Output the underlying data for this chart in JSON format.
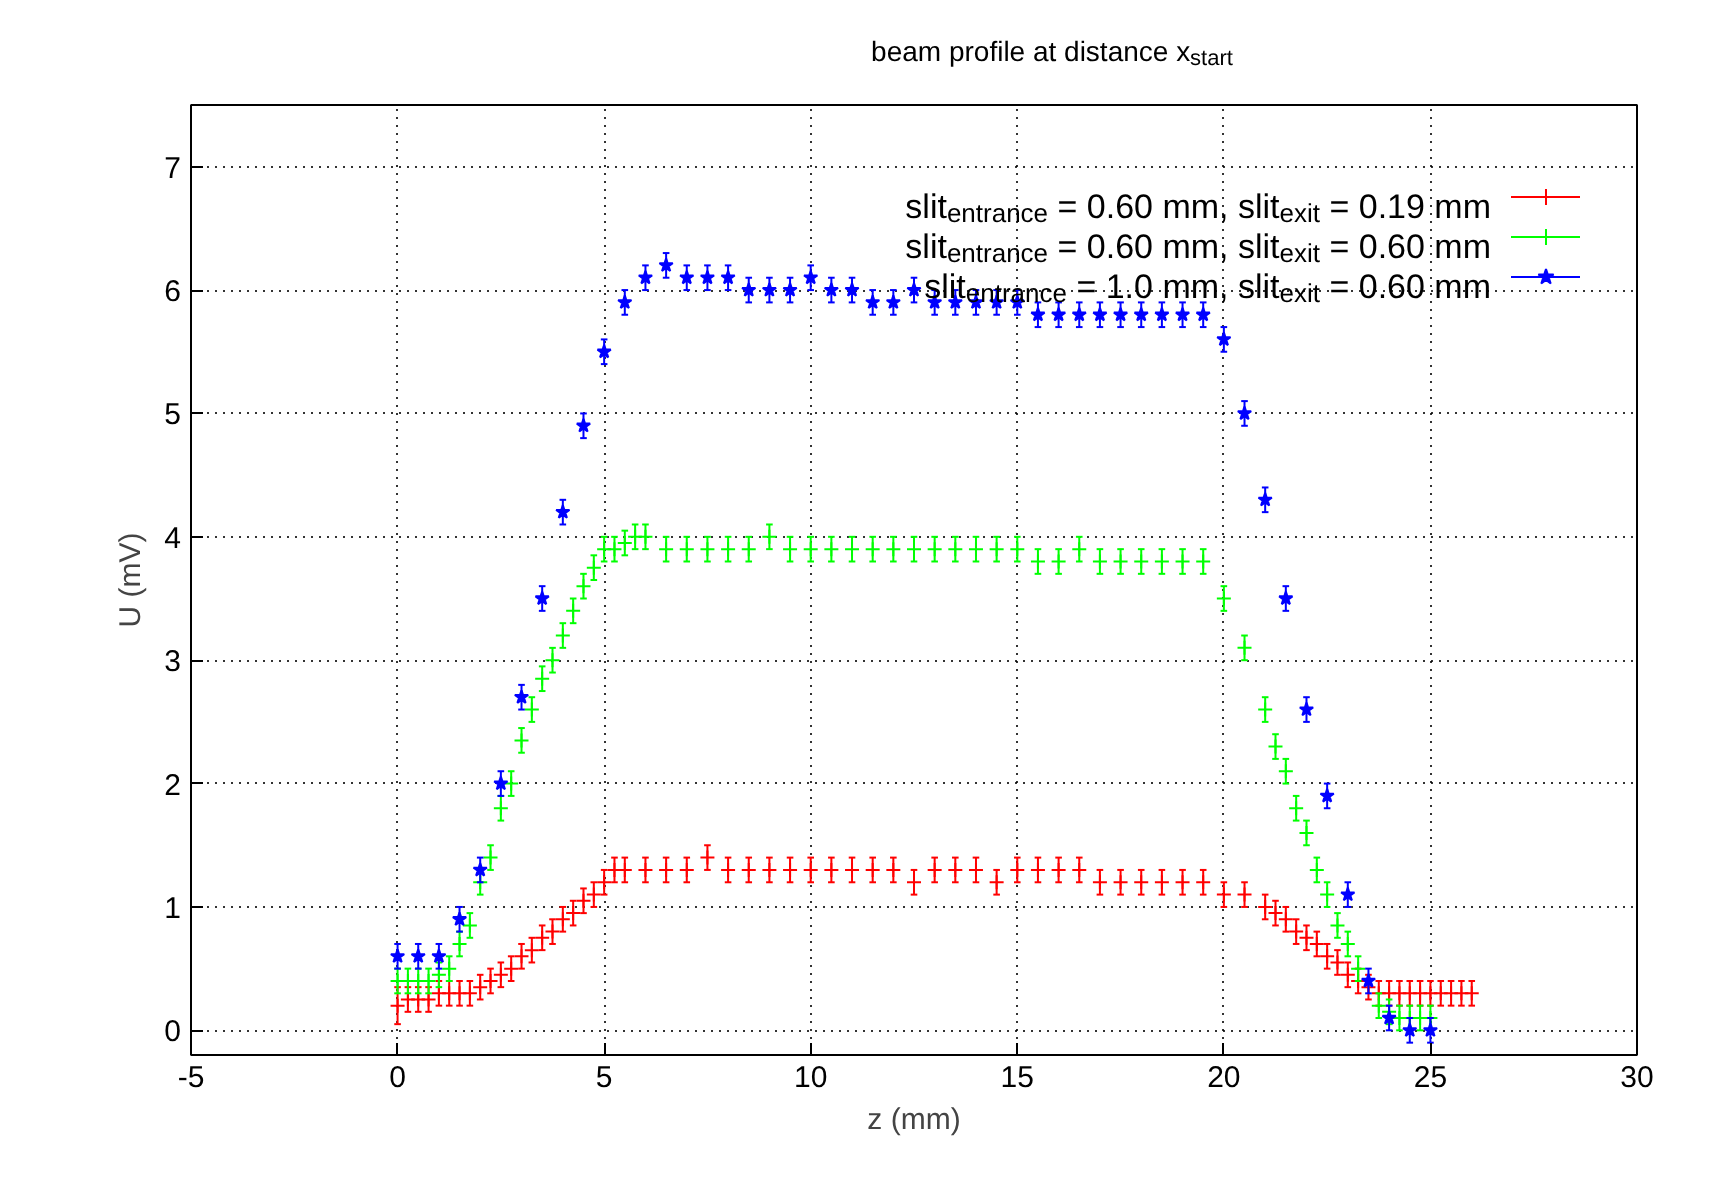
{
  "chart_data": {
    "type": "scatter",
    "title": "beam profile at distance x$_{start}$",
    "xlabel": "z (mm)",
    "ylabel": "U (mV)",
    "xlim": [
      -5,
      30
    ],
    "ylim": [
      -0.2,
      7.5
    ],
    "xticks": [
      -5,
      0,
      5,
      10,
      15,
      20,
      25,
      30
    ],
    "yticks": [
      0,
      1,
      2,
      3,
      4,
      5,
      6,
      7
    ],
    "grid": true,
    "legend": "top right",
    "series": [
      {
        "name": "slit$_{entrance}$ = 0.60 mm, slit$_{exit}$ = 0.19 mm",
        "color": "#ff0000",
        "marker": "cross",
        "x": [
          0,
          0.25,
          0.5,
          0.75,
          1,
          1.25,
          1.5,
          1.75,
          2,
          2.25,
          2.5,
          2.75,
          3,
          3.25,
          3.5,
          3.75,
          4,
          4.25,
          4.5,
          4.75,
          5,
          5.25,
          5.5,
          6,
          6.5,
          7,
          7.5,
          8,
          8.5,
          9,
          9.5,
          10,
          10.5,
          11,
          11.5,
          12,
          12.5,
          13,
          13.5,
          14,
          14.5,
          15,
          15.5,
          16,
          16.5,
          17,
          17.5,
          18,
          18.5,
          19,
          19.5,
          20,
          20.5,
          21,
          21.25,
          21.5,
          21.75,
          22,
          22.25,
          22.5,
          22.75,
          23,
          23.25,
          23.5,
          23.75,
          24,
          24.25,
          24.5,
          24.75,
          25,
          25.25,
          25.5,
          25.75,
          26
        ],
        "values": [
          0.2,
          0.25,
          0.25,
          0.25,
          0.3,
          0.3,
          0.3,
          0.3,
          0.35,
          0.4,
          0.45,
          0.5,
          0.6,
          0.65,
          0.75,
          0.8,
          0.9,
          0.95,
          1.05,
          1.1,
          1.2,
          1.3,
          1.3,
          1.3,
          1.3,
          1.3,
          1.4,
          1.3,
          1.3,
          1.3,
          1.3,
          1.3,
          1.3,
          1.3,
          1.3,
          1.3,
          1.2,
          1.3,
          1.3,
          1.3,
          1.2,
          1.3,
          1.3,
          1.3,
          1.3,
          1.2,
          1.2,
          1.2,
          1.2,
          1.2,
          1.2,
          1.1,
          1.1,
          1.0,
          0.95,
          0.9,
          0.8,
          0.75,
          0.7,
          0.6,
          0.55,
          0.45,
          0.4,
          0.35,
          0.3,
          0.3,
          0.3,
          0.3,
          0.3,
          0.3,
          0.3,
          0.3,
          0.3,
          0.3
        ],
        "errors": [
          0.15,
          0.1,
          0.1,
          0.1,
          0.1,
          0.1,
          0.1,
          0.1,
          0.1,
          0.1,
          0.1,
          0.1,
          0.1,
          0.1,
          0.1,
          0.1,
          0.1,
          0.1,
          0.1,
          0.1,
          0.1,
          0.1,
          0.1,
          0.1,
          0.1,
          0.1,
          0.1,
          0.1,
          0.1,
          0.1,
          0.1,
          0.1,
          0.1,
          0.1,
          0.1,
          0.1,
          0.1,
          0.1,
          0.1,
          0.1,
          0.1,
          0.1,
          0.1,
          0.1,
          0.1,
          0.1,
          0.1,
          0.1,
          0.1,
          0.1,
          0.1,
          0.1,
          0.1,
          0.1,
          0.1,
          0.1,
          0.1,
          0.1,
          0.1,
          0.1,
          0.1,
          0.1,
          0.1,
          0.1,
          0.1,
          0.1,
          0.1,
          0.1,
          0.1,
          0.1,
          0.1,
          0.1,
          0.1,
          0.1
        ]
      },
      {
        "name": "slit$_{entrance}$ = 0.60 mm, slit$_{exit}$ = 0.60 mm",
        "color": "#00ff00",
        "marker": "cross",
        "x": [
          0,
          0.25,
          0.5,
          0.75,
          1,
          1.25,
          1.5,
          1.75,
          2,
          2.25,
          2.5,
          2.75,
          3,
          3.25,
          3.5,
          3.75,
          4,
          4.25,
          4.5,
          4.75,
          5,
          5.25,
          5.5,
          5.75,
          6,
          6.5,
          7,
          7.5,
          8,
          8.5,
          9,
          9.5,
          10,
          10.5,
          11,
          11.5,
          12,
          12.5,
          13,
          13.5,
          14,
          14.5,
          15,
          15.5,
          16,
          16.5,
          17,
          17.5,
          18,
          18.5,
          19,
          19.5,
          20,
          20.5,
          21,
          21.25,
          21.5,
          21.75,
          22,
          22.25,
          22.5,
          22.75,
          23,
          23.25,
          23.75,
          24,
          24.25,
          24.5,
          24.75,
          25
        ],
        "values": [
          0.4,
          0.4,
          0.4,
          0.4,
          0.45,
          0.5,
          0.7,
          0.85,
          1.2,
          1.4,
          1.8,
          2.0,
          2.35,
          2.6,
          2.85,
          3.0,
          3.2,
          3.4,
          3.6,
          3.75,
          3.9,
          3.9,
          3.95,
          4.0,
          4.0,
          3.9,
          3.9,
          3.9,
          3.9,
          3.9,
          4.0,
          3.9,
          3.9,
          3.9,
          3.9,
          3.9,
          3.9,
          3.9,
          3.9,
          3.9,
          3.9,
          3.9,
          3.9,
          3.8,
          3.8,
          3.9,
          3.8,
          3.8,
          3.8,
          3.8,
          3.8,
          3.8,
          3.5,
          3.1,
          2.6,
          2.3,
          2.1,
          1.8,
          1.6,
          1.3,
          1.1,
          0.85,
          0.7,
          0.5,
          0.2,
          0.15,
          0.1,
          0.1,
          0.1,
          0.1
        ],
        "errors": [
          0.1,
          0.1,
          0.1,
          0.1,
          0.1,
          0.1,
          0.1,
          0.1,
          0.1,
          0.1,
          0.1,
          0.1,
          0.1,
          0.1,
          0.1,
          0.1,
          0.1,
          0.1,
          0.1,
          0.1,
          0.1,
          0.1,
          0.1,
          0.1,
          0.1,
          0.1,
          0.1,
          0.1,
          0.1,
          0.1,
          0.1,
          0.1,
          0.1,
          0.1,
          0.1,
          0.1,
          0.1,
          0.1,
          0.1,
          0.1,
          0.1,
          0.1,
          0.1,
          0.1,
          0.1,
          0.1,
          0.1,
          0.1,
          0.1,
          0.1,
          0.1,
          0.1,
          0.1,
          0.1,
          0.1,
          0.1,
          0.1,
          0.1,
          0.1,
          0.1,
          0.1,
          0.1,
          0.1,
          0.1,
          0.1,
          0.1,
          0.1,
          0.1,
          0.1,
          0.1
        ]
      },
      {
        "name": "slit$_{entrance}$ = 1.0 mm, slit$_{exit}$ = 0.60 mm",
        "color": "#0000ff",
        "marker": "star",
        "x": [
          0,
          0.5,
          1,
          1.5,
          2,
          2.5,
          3,
          3.5,
          4,
          4.5,
          5,
          5.5,
          6,
          6.5,
          7,
          7.5,
          8,
          8.5,
          9,
          9.5,
          10,
          10.5,
          11,
          11.5,
          12,
          12.5,
          13,
          13.5,
          14,
          14.5,
          15,
          15.5,
          16,
          16.5,
          17,
          17.5,
          18,
          18.5,
          19,
          19.5,
          20,
          20.5,
          21,
          21.5,
          22,
          22.5,
          23,
          23.5,
          24,
          24.5,
          25
        ],
        "values": [
          0.6,
          0.6,
          0.6,
          0.9,
          1.3,
          2.0,
          2.7,
          3.5,
          4.2,
          4.9,
          5.5,
          5.9,
          6.1,
          6.2,
          6.1,
          6.1,
          6.1,
          6.0,
          6.0,
          6.0,
          6.1,
          6.0,
          6.0,
          5.9,
          5.9,
          6.0,
          5.9,
          5.9,
          5.9,
          5.9,
          5.9,
          5.8,
          5.8,
          5.8,
          5.8,
          5.8,
          5.8,
          5.8,
          5.8,
          5.8,
          5.6,
          5.0,
          4.3,
          3.5,
          2.6,
          1.9,
          1.1,
          0.4,
          0.1,
          0.0,
          0.0
        ],
        "errors": [
          0.1,
          0.1,
          0.1,
          0.1,
          0.1,
          0.1,
          0.1,
          0.1,
          0.1,
          0.1,
          0.1,
          0.1,
          0.1,
          0.1,
          0.1,
          0.1,
          0.1,
          0.1,
          0.1,
          0.1,
          0.1,
          0.1,
          0.1,
          0.1,
          0.1,
          0.1,
          0.1,
          0.1,
          0.1,
          0.1,
          0.1,
          0.1,
          0.1,
          0.1,
          0.1,
          0.1,
          0.1,
          0.1,
          0.1,
          0.1,
          0.1,
          0.1,
          0.1,
          0.1,
          0.1,
          0.1,
          0.1,
          0.1,
          0.1,
          0.1,
          0.1
        ]
      }
    ]
  }
}
